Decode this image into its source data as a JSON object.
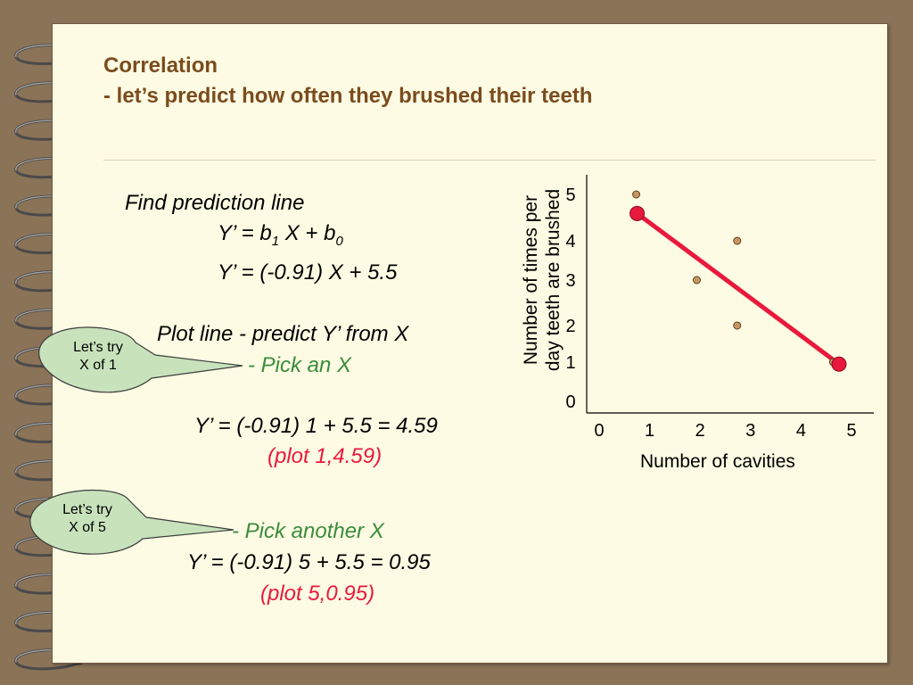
{
  "title": {
    "line1": "Correlation",
    "line2": "- let’s predict how often they brushed their teeth"
  },
  "content": {
    "find_line": "Find prediction line",
    "formula_prefix": "Y’ = b",
    "formula_sub1": "1",
    "formula_mid": " X + b",
    "formula_sub0": "0",
    "equation": "Y’ = (-0.91) X + 5.5",
    "plot_line": "Plot line - predict Y’ from X",
    "pick_x": "- Pick an X",
    "calc1": "Y’ = (-0.91) 1 + 5.5 = 4.59",
    "plot1": "(plot 1,4.59)",
    "pick_another": "- Pick another X",
    "calc2": "Y’ = (-0.91) 5 + 5.5 = 0.95",
    "plot2": "(plot 5,0.95)"
  },
  "bubbles": {
    "bubble1": {
      "line1": "Let’s try",
      "line2": "X of 1"
    },
    "bubble2": {
      "line1": "Let’s try",
      "line2": "X of 5"
    }
  },
  "colors": {
    "title": "#7a4c1e",
    "green": "#3b8c3b",
    "red": "#e8193c",
    "bubble_fill": "#c8e3bc",
    "point_fill": "#c9955f"
  },
  "chart_data": {
    "type": "scatter",
    "xlabel": "Number of cavities",
    "ylabel_line1": "Number of times per",
    "ylabel_line2": "day teeth are brushed",
    "xticks": [
      "0",
      "1",
      "2",
      "3",
      "4",
      "5"
    ],
    "yticks": [
      "0",
      "1",
      "2",
      "3",
      "4",
      "5"
    ],
    "xlim": [
      0,
      5
    ],
    "ylim": [
      0,
      5
    ],
    "points": [
      {
        "x": 1,
        "y": 5
      },
      {
        "x": 2.2,
        "y": 3
      },
      {
        "x": 3,
        "y": 4
      },
      {
        "x": 3,
        "y": 2
      },
      {
        "x": 4.9,
        "y": 1
      }
    ],
    "prediction_points": [
      {
        "x": 1,
        "y": 4.59
      },
      {
        "x": 5,
        "y": 0.95
      }
    ],
    "grid": false
  }
}
